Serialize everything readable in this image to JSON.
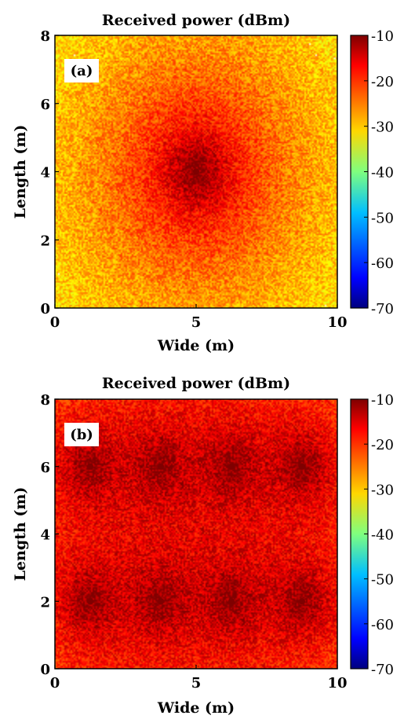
{
  "chart_data": [
    {
      "type": "heatmap",
      "panel_label": "(a)",
      "title": "Received power (dBm)",
      "xlabel": "Wide (m)",
      "ylabel": "Length (m)",
      "xlim": [
        0,
        10
      ],
      "ylim": [
        0,
        8
      ],
      "xticks": [
        0,
        5,
        10
      ],
      "yticks": [
        0,
        2,
        4,
        6,
        8
      ],
      "colorbar": {
        "range": [
          -70,
          -10
        ],
        "ticks": [
          -10,
          -20,
          -30,
          -40,
          -50,
          -60,
          -70
        ],
        "colormap": "jet"
      },
      "sources": [
        {
          "x": 5,
          "y": 4
        }
      ],
      "peak_dBm": -10,
      "floor_dBm": -70,
      "grid": false
    },
    {
      "type": "heatmap",
      "panel_label": "(b)",
      "title": "Received power (dBm)",
      "xlabel": "Wide (m)",
      "ylabel": "Length (m)",
      "xlim": [
        0,
        10
      ],
      "ylim": [
        0,
        8
      ],
      "xticks": [
        0,
        5,
        10
      ],
      "yticks": [
        0,
        2,
        4,
        6,
        8
      ],
      "colorbar": {
        "range": [
          -70,
          -10
        ],
        "ticks": [
          -10,
          -20,
          -30,
          -40,
          -50,
          -60,
          -70
        ],
        "colormap": "jet"
      },
      "sources": [
        {
          "x": 1.25,
          "y": 6
        },
        {
          "x": 3.75,
          "y": 6
        },
        {
          "x": 6.25,
          "y": 6
        },
        {
          "x": 8.75,
          "y": 6
        },
        {
          "x": 1.25,
          "y": 2
        },
        {
          "x": 3.75,
          "y": 2
        },
        {
          "x": 6.25,
          "y": 2
        },
        {
          "x": 8.75,
          "y": 2
        }
      ],
      "peak_dBm": -10,
      "floor_dBm": -70,
      "grid": false
    }
  ]
}
